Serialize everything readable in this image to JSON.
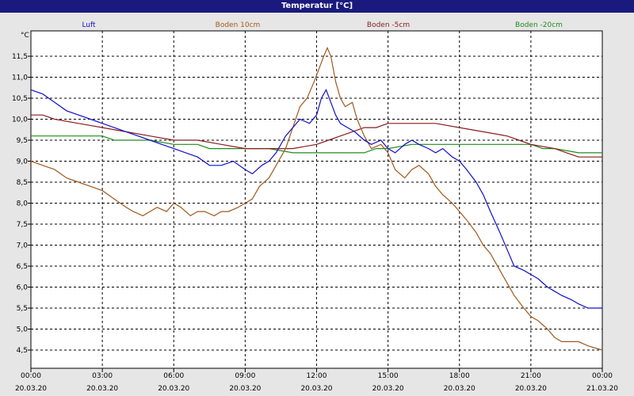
{
  "window": {
    "title": "Temperatur [°C]"
  },
  "chart_data": {
    "type": "line",
    "title": "Temperatur [°C]",
    "ylabel": "°C",
    "xlabel": "",
    "ylim": [
      4.5,
      11.5
    ],
    "y_ticks": [
      "11,5",
      "11,0",
      "10,5",
      "10,0",
      "9,5",
      "9,0",
      "8,5",
      "8,0",
      "7,5",
      "7,0",
      "6,5",
      "6,0",
      "5,5",
      "5,0",
      "4,5"
    ],
    "x_range_hours": [
      0,
      24
    ],
    "x_ticks": [
      {
        "time": "00:00",
        "date": "20.03.20"
      },
      {
        "time": "03:00",
        "date": "20.03.20"
      },
      {
        "time": "06:00",
        "date": "20.03.20"
      },
      {
        "time": "09:00",
        "date": "20.03.20"
      },
      {
        "time": "12:00",
        "date": "20.03.20"
      },
      {
        "time": "15:00",
        "date": "20.03.20"
      },
      {
        "time": "18:00",
        "date": "20.03.20"
      },
      {
        "time": "21:00",
        "date": "20.03.20"
      },
      {
        "time": "00:00",
        "date": "21.03.20"
      }
    ],
    "grid": true,
    "legend_position": "top",
    "series": [
      {
        "name": "Luft",
        "color": "#1010cc",
        "points": [
          [
            0,
            10.7
          ],
          [
            0.5,
            10.6
          ],
          [
            1,
            10.4
          ],
          [
            1.5,
            10.2
          ],
          [
            2,
            10.1
          ],
          [
            2.5,
            10.0
          ],
          [
            3,
            9.9
          ],
          [
            3.5,
            9.8
          ],
          [
            4,
            9.7
          ],
          [
            4.5,
            9.6
          ],
          [
            5,
            9.5
          ],
          [
            5.5,
            9.4
          ],
          [
            6,
            9.3
          ],
          [
            6.5,
            9.2
          ],
          [
            7,
            9.1
          ],
          [
            7.5,
            8.9
          ],
          [
            8,
            8.9
          ],
          [
            8.5,
            9.0
          ],
          [
            9,
            8.8
          ],
          [
            9.3,
            8.7
          ],
          [
            9.7,
            8.9
          ],
          [
            10,
            9.0
          ],
          [
            10.3,
            9.2
          ],
          [
            10.7,
            9.6
          ],
          [
            11,
            9.8
          ],
          [
            11.3,
            10.0
          ],
          [
            11.7,
            9.9
          ],
          [
            12,
            10.1
          ],
          [
            12.2,
            10.5
          ],
          [
            12.4,
            10.7
          ],
          [
            12.6,
            10.4
          ],
          [
            12.8,
            10.1
          ],
          [
            13,
            9.9
          ],
          [
            13.3,
            9.8
          ],
          [
            13.6,
            9.7
          ],
          [
            14,
            9.5
          ],
          [
            14.3,
            9.4
          ],
          [
            14.7,
            9.5
          ],
          [
            15,
            9.3
          ],
          [
            15.3,
            9.2
          ],
          [
            15.7,
            9.4
          ],
          [
            16,
            9.5
          ],
          [
            16.3,
            9.4
          ],
          [
            16.7,
            9.3
          ],
          [
            17,
            9.2
          ],
          [
            17.3,
            9.3
          ],
          [
            17.7,
            9.1
          ],
          [
            18,
            9.0
          ],
          [
            18.3,
            8.8
          ],
          [
            18.7,
            8.5
          ],
          [
            19,
            8.2
          ],
          [
            19.3,
            7.8
          ],
          [
            19.7,
            7.3
          ],
          [
            20,
            6.9
          ],
          [
            20.3,
            6.5
          ],
          [
            20.7,
            6.4
          ],
          [
            21,
            6.3
          ],
          [
            21.3,
            6.2
          ],
          [
            21.7,
            6.0
          ],
          [
            22,
            5.9
          ],
          [
            22.3,
            5.8
          ],
          [
            22.7,
            5.7
          ],
          [
            23,
            5.6
          ],
          [
            23.4,
            5.5
          ],
          [
            24,
            5.5
          ]
        ]
      },
      {
        "name": "Boden 10cm",
        "color": "#a05a1e",
        "points": [
          [
            0,
            9.0
          ],
          [
            0.5,
            8.9
          ],
          [
            1,
            8.8
          ],
          [
            1.5,
            8.6
          ],
          [
            2,
            8.5
          ],
          [
            2.5,
            8.4
          ],
          [
            3,
            8.3
          ],
          [
            3.5,
            8.1
          ],
          [
            4,
            7.9
          ],
          [
            4.3,
            7.8
          ],
          [
            4.7,
            7.7
          ],
          [
            5,
            7.8
          ],
          [
            5.3,
            7.9
          ],
          [
            5.7,
            7.8
          ],
          [
            6,
            8.0
          ],
          [
            6.3,
            7.9
          ],
          [
            6.7,
            7.7
          ],
          [
            7,
            7.8
          ],
          [
            7.3,
            7.8
          ],
          [
            7.7,
            7.7
          ],
          [
            8,
            7.8
          ],
          [
            8.3,
            7.8
          ],
          [
            8.7,
            7.9
          ],
          [
            9,
            8.0
          ],
          [
            9.3,
            8.1
          ],
          [
            9.6,
            8.4
          ],
          [
            10,
            8.6
          ],
          [
            10.3,
            8.9
          ],
          [
            10.7,
            9.3
          ],
          [
            11,
            9.8
          ],
          [
            11.3,
            10.3
          ],
          [
            11.6,
            10.5
          ],
          [
            11.9,
            10.9
          ],
          [
            12.1,
            11.2
          ],
          [
            12.3,
            11.5
          ],
          [
            12.45,
            11.7
          ],
          [
            12.6,
            11.5
          ],
          [
            12.8,
            10.9
          ],
          [
            13,
            10.5
          ],
          [
            13.2,
            10.3
          ],
          [
            13.5,
            10.4
          ],
          [
            13.7,
            10.0
          ],
          [
            14,
            9.6
          ],
          [
            14.3,
            9.3
          ],
          [
            14.7,
            9.4
          ],
          [
            15,
            9.2
          ],
          [
            15.3,
            8.8
          ],
          [
            15.7,
            8.6
          ],
          [
            16,
            8.8
          ],
          [
            16.3,
            8.9
          ],
          [
            16.7,
            8.7
          ],
          [
            17,
            8.4
          ],
          [
            17.3,
            8.2
          ],
          [
            17.7,
            8.0
          ],
          [
            18,
            7.8
          ],
          [
            18.3,
            7.6
          ],
          [
            18.7,
            7.3
          ],
          [
            19,
            7.0
          ],
          [
            19.3,
            6.8
          ],
          [
            19.7,
            6.4
          ],
          [
            20,
            6.1
          ],
          [
            20.3,
            5.8
          ],
          [
            20.7,
            5.5
          ],
          [
            21,
            5.3
          ],
          [
            21.3,
            5.2
          ],
          [
            21.7,
            5.0
          ],
          [
            22,
            4.8
          ],
          [
            22.3,
            4.7
          ],
          [
            22.7,
            4.7
          ],
          [
            23,
            4.7
          ],
          [
            23.4,
            4.6
          ],
          [
            24,
            4.5
          ]
        ]
      },
      {
        "name": "Boden -5cm",
        "color": "#8a1c1c",
        "points": [
          [
            0,
            10.1
          ],
          [
            0.5,
            10.1
          ],
          [
            1,
            10.0
          ],
          [
            2,
            9.9
          ],
          [
            3,
            9.8
          ],
          [
            4,
            9.7
          ],
          [
            5,
            9.6
          ],
          [
            6,
            9.5
          ],
          [
            7,
            9.5
          ],
          [
            8,
            9.4
          ],
          [
            9,
            9.3
          ],
          [
            10,
            9.3
          ],
          [
            11,
            9.3
          ],
          [
            12,
            9.4
          ],
          [
            12.5,
            9.5
          ],
          [
            13,
            9.6
          ],
          [
            13.5,
            9.7
          ],
          [
            14,
            9.8
          ],
          [
            14.5,
            9.8
          ],
          [
            15,
            9.9
          ],
          [
            16,
            9.9
          ],
          [
            17,
            9.9
          ],
          [
            18,
            9.8
          ],
          [
            19,
            9.7
          ],
          [
            20,
            9.6
          ],
          [
            20.5,
            9.5
          ],
          [
            21,
            9.4
          ],
          [
            22,
            9.3
          ],
          [
            22.5,
            9.2
          ],
          [
            23,
            9.1
          ],
          [
            24,
            9.1
          ]
        ]
      },
      {
        "name": "Boden -20cm",
        "color": "#1e8c1e",
        "points": [
          [
            0,
            9.6
          ],
          [
            1,
            9.6
          ],
          [
            2,
            9.6
          ],
          [
            3,
            9.6
          ],
          [
            3.5,
            9.5
          ],
          [
            4,
            9.5
          ],
          [
            5,
            9.5
          ],
          [
            6,
            9.4
          ],
          [
            7,
            9.4
          ],
          [
            7.5,
            9.3
          ],
          [
            8,
            9.3
          ],
          [
            9,
            9.3
          ],
          [
            10,
            9.3
          ],
          [
            11,
            9.2
          ],
          [
            12,
            9.2
          ],
          [
            13,
            9.2
          ],
          [
            14,
            9.2
          ],
          [
            14.5,
            9.3
          ],
          [
            15,
            9.3
          ],
          [
            16,
            9.4
          ],
          [
            17,
            9.4
          ],
          [
            18,
            9.4
          ],
          [
            19,
            9.4
          ],
          [
            20,
            9.4
          ],
          [
            21,
            9.4
          ],
          [
            21.5,
            9.3
          ],
          [
            22,
            9.3
          ],
          [
            23,
            9.2
          ],
          [
            24,
            9.2
          ]
        ]
      }
    ]
  }
}
